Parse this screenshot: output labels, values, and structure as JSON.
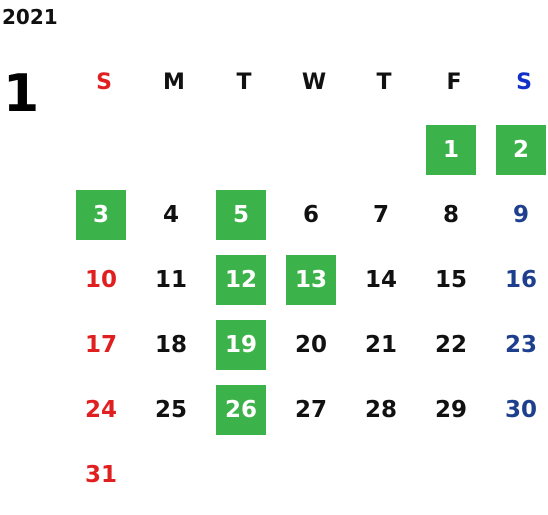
{
  "year": "2021",
  "month": "1",
  "weekdays": [
    "S",
    "M",
    "T",
    "W",
    "T",
    "F",
    "S"
  ],
  "first_weekday_index": 5,
  "days_in_month": 31,
  "highlighted_days": [
    1,
    2,
    3,
    5,
    12,
    13,
    19,
    26
  ],
  "colors": {
    "highlight_bg": "#3cb34a",
    "highlight_text": "#ffffff",
    "sunday": "#e02020",
    "saturday": "#1d3f8e",
    "saturday_header": "#1030c8",
    "weekday": "#111111"
  }
}
